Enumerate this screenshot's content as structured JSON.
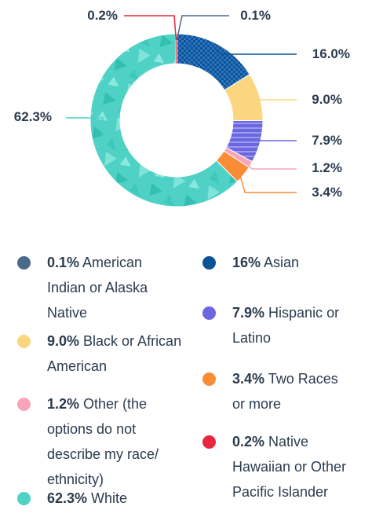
{
  "chart_data": {
    "type": "pie",
    "title": "",
    "slices": [
      {
        "label": "American Indian or Alaska Native",
        "value": 0.1,
        "value_label": "0.1%",
        "color": "#4a6a8c"
      },
      {
        "label": "Asian",
        "value": 16.0,
        "value_label": "16.0%",
        "color": "#0b5394"
      },
      {
        "label": "Black or African American",
        "value": 9.0,
        "value_label": "9.0%",
        "color": "#fcd580"
      },
      {
        "label": "Hispanic or Latino",
        "value": 7.9,
        "value_label": "7.9%",
        "color": "#6a67e0"
      },
      {
        "label": "Other (the options do not describe my race/ ethnicity)",
        "value": 1.2,
        "value_label": "1.2%",
        "color": "#f7a6b9"
      },
      {
        "label": "Two Races or more",
        "value": 3.4,
        "value_label": "3.4%",
        "color": "#fa8c35"
      },
      {
        "label": "White",
        "value": 62.3,
        "value_label": "62.3%",
        "color": "#4fd1c5"
      },
      {
        "label": "Native Hawaiian or Other Pacific Islander",
        "value": 0.2,
        "value_label": "0.2%",
        "color": "#e8263e"
      }
    ]
  },
  "legend": [
    {
      "value": "0.1%",
      "label": "American Indian or Alaska Native",
      "color": "#4a6a8c"
    },
    {
      "value": "16%",
      "label": "Asian",
      "color": "#0b5394"
    },
    {
      "value": "9.0%",
      "label": "Black or African American",
      "color": "#fcd580"
    },
    {
      "value": "7.9%",
      "label": "Hispanic or Latino",
      "color": "#6a67e0"
    },
    {
      "value": "1.2%",
      "label": "Other (the options do not describe my race/ ethnicity)",
      "color": "#f7a6b9"
    },
    {
      "value": "3.4%",
      "label": "Two Races or more",
      "color": "#fa8c35"
    },
    {
      "value": "62.3%",
      "label": "White",
      "color": "#4fd1c5"
    },
    {
      "value": "0.2%",
      "label": "Native Hawaiian or Other Pacific Islander",
      "color": "#e8263e"
    }
  ]
}
